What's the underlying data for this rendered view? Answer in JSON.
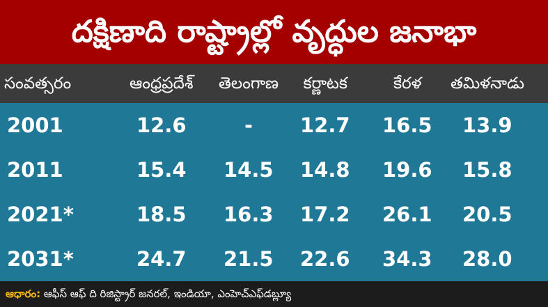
{
  "header": {
    "title": "దక్షిణాది రాష్ట్రాల్లో వృద్ధుల జనాభా"
  },
  "table": {
    "columns": [
      "సంవత్సరం",
      "ఆంధ్రప్రదేశ్",
      "తెలంగాణ",
      "కర్ణాటక",
      "కేరళ",
      "తమిళనాడు"
    ],
    "rows": [
      [
        "2001",
        "12.6",
        "-",
        "12.7",
        "16.5",
        "13.9"
      ],
      [
        "2011",
        "15.4",
        "14.5",
        "14.8",
        "19.6",
        "15.8"
      ],
      [
        "2021*",
        "18.5",
        "16.3",
        "17.2",
        "26.1",
        "20.5"
      ],
      [
        "2031*",
        "24.7",
        "21.5",
        "22.6",
        "34.3",
        "28.0"
      ]
    ]
  },
  "footer": {
    "label": "ఆధారం:",
    "text": "ఆఫీస్ ఆఫ్ ది రిజిస్ట్రార్ జనరల్, ఇండియా, ఎంహెచ్ఎఫ్‌డబ్ల్యూ"
  }
}
